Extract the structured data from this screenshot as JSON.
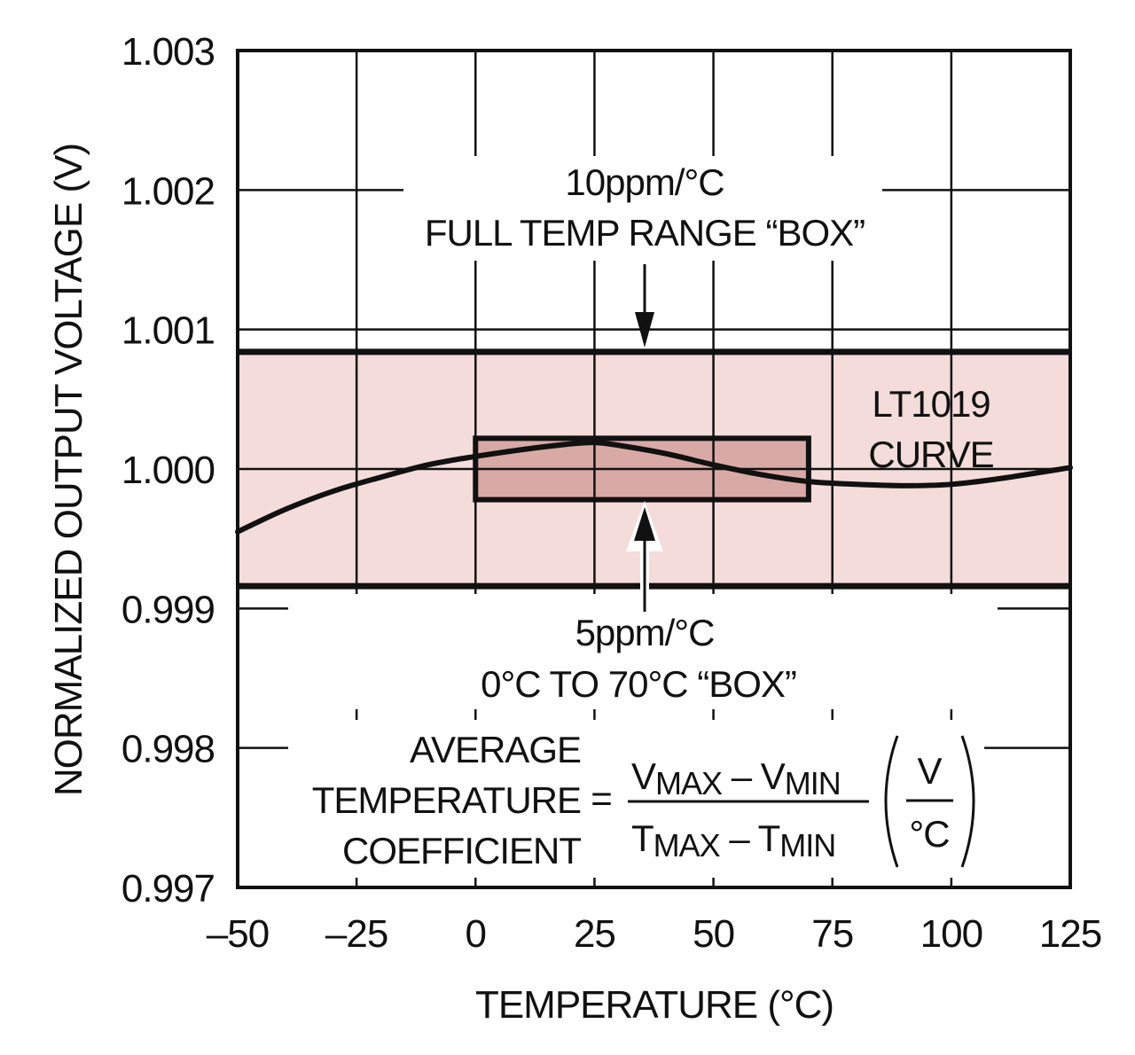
{
  "chart_data": {
    "type": "line",
    "title": "",
    "xlabel": "TEMPERATURE (°C)",
    "ylabel": "NORMALIZED OUTPUT VOLTAGE (V)",
    "xlim": [
      -50,
      125
    ],
    "ylim": [
      0.997,
      1.003
    ],
    "x_ticks": [
      -50,
      -25,
      0,
      25,
      50,
      75,
      100,
      125
    ],
    "x_tick_labels": [
      "–50",
      "–25",
      "0",
      "25",
      "50",
      "75",
      "100",
      "125"
    ],
    "y_ticks": [
      0.997,
      0.998,
      0.999,
      1.0,
      1.001,
      1.002,
      1.003
    ],
    "y_tick_labels": [
      "0.997",
      "0.998",
      "0.999",
      "1.000",
      "1.001",
      "1.002",
      "1.003"
    ],
    "grid": true,
    "series": [
      {
        "name": "LT1019 CURVE",
        "x": [
          -50,
          -40,
          -30,
          -20,
          -10,
          0,
          10,
          20,
          25,
          30,
          40,
          50,
          60,
          70,
          80,
          90,
          100,
          110,
          125
        ],
        "y": [
          0.99955,
          0.99971,
          0.99984,
          0.99994,
          1.00003,
          1.00009,
          1.00014,
          1.00018,
          1.00019,
          1.00017,
          1.00011,
          1.00003,
          0.99996,
          0.99991,
          0.99989,
          0.99988,
          0.99989,
          0.99993,
          1.00001
        ]
      }
    ],
    "boxes": [
      {
        "name": "full-temp-range-box",
        "x_range": [
          -50,
          125
        ],
        "y_range": [
          0.99916,
          1.00084
        ],
        "color": "#f3dcd9"
      },
      {
        "name": "zero-to-seventy-box",
        "x_range": [
          0,
          70
        ],
        "y_range": [
          0.99978,
          1.00022
        ],
        "color": "#d9a9a6"
      }
    ],
    "annotations": {
      "full_box_line1": "10ppm/°C",
      "full_box_line2": "FULL TEMP RANGE “BOX”",
      "small_box_line1": "5ppm/°C",
      "small_box_line2": "0°C TO 70°C “BOX”",
      "curve_line1": "LT1019",
      "curve_line2": "CURVE"
    },
    "formula": {
      "label_line1": "AVERAGE",
      "label_line2": "TEMPERATURE",
      "label_line3": "COEFFICIENT",
      "equals": "=",
      "num_v1": "V",
      "num_sub1": "MAX",
      "num_minus": " – ",
      "num_v2": "V",
      "num_sub2": "MIN",
      "den_t1": "T",
      "den_sub1": "MAX",
      "den_minus": " – ",
      "den_t2": "T",
      "den_sub2": "MIN",
      "unit_num": "V",
      "unit_den": "°C"
    }
  }
}
